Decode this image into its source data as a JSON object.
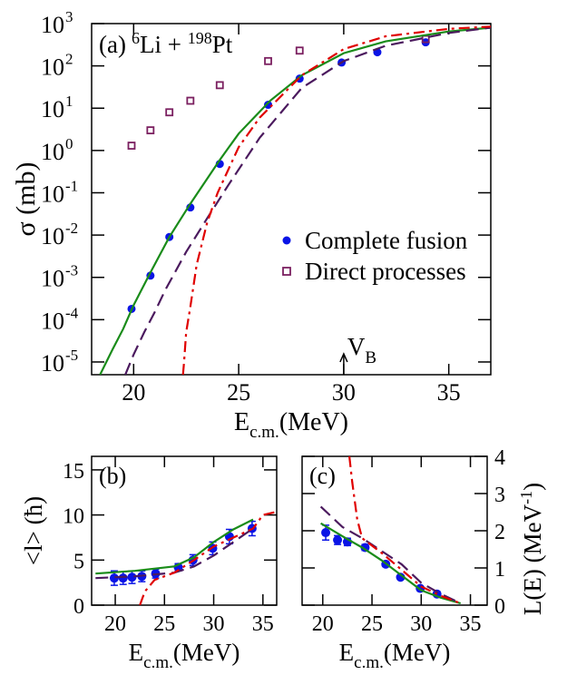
{
  "chart_data": [
    {
      "type": "scatter",
      "panel_label": "(a)",
      "reaction": {
        "pre_sup": "6",
        "a": "Li + ",
        "sup": "198",
        "b": "Pt"
      },
      "ylabel": "σ (mb)",
      "xlabel": {
        "text": "E",
        "sub": "c.m.",
        "unit": "(MeV)"
      },
      "annotation": {
        "text": "V",
        "sub": "B",
        "x": 30
      },
      "xlim": [
        18,
        37
      ],
      "xticks": [
        20,
        25,
        30,
        35
      ],
      "ylog": true,
      "ylim": [
        5e-06,
        1000
      ],
      "yticks": [
        {
          "value": 1e-05,
          "label": "10",
          "exponent": "-5"
        },
        {
          "value": 0.0001,
          "label": "10",
          "exponent": "-4"
        },
        {
          "value": 0.001,
          "label": "10",
          "exponent": "-3"
        },
        {
          "value": 0.01,
          "label": "10",
          "exponent": "-2"
        },
        {
          "value": 0.1,
          "label": "10",
          "exponent": "-1"
        },
        {
          "value": 1,
          "label": "10",
          "exponent": "0"
        },
        {
          "value": 10,
          "label": "10",
          "exponent": "1"
        },
        {
          "value": 100,
          "label": "10",
          "exponent": "2"
        },
        {
          "value": 1000,
          "label": "10",
          "exponent": "3"
        }
      ],
      "legend": "right",
      "series": [
        {
          "type": "scatter",
          "name": "Complete fusion",
          "marker": "circle",
          "color": "#0a14e6",
          "x": [
            19.9,
            20.8,
            21.7,
            22.7,
            24.1,
            26.4,
            27.9,
            29.9,
            31.6,
            33.9
          ],
          "values": [
            0.00018,
            0.0011,
            0.009,
            0.045,
            0.48,
            12,
            50,
            120,
            210,
            360
          ]
        },
        {
          "type": "scatter",
          "name": "Direct processes",
          "marker": "square",
          "color": "#7b2060",
          "x": [
            19.9,
            20.8,
            21.7,
            22.7,
            24.1,
            26.4,
            27.9,
            33.9
          ],
          "values": [
            1.3,
            3,
            8,
            15,
            35,
            130,
            230,
            430
          ]
        },
        {
          "type": "line",
          "line": "solid",
          "color": "#1a8c1a",
          "x": [
            18.4,
            19,
            19.5,
            20,
            20.8,
            21.7,
            22.7,
            24.1,
            25,
            26.5,
            28,
            30,
            32,
            35,
            37
          ],
          "values": [
            5e-06,
            2e-05,
            6e-05,
            0.00022,
            0.0013,
            0.009,
            0.055,
            0.6,
            2.5,
            15,
            60,
            200,
            380,
            650,
            800
          ]
        },
        {
          "type": "line",
          "line": "dashed",
          "color": "#4b1a5e",
          "x": [
            19.6,
            20,
            20.5,
            21,
            21.5,
            22.5,
            23.5,
            24.5,
            26,
            28,
            30,
            32,
            35,
            37
          ],
          "values": [
            5e-06,
            1.5e-05,
            5e-05,
            0.00015,
            0.0005,
            0.004,
            0.025,
            0.15,
            2,
            30,
            130,
            300,
            600,
            800
          ]
        },
        {
          "type": "line",
          "line": "dashdot",
          "color": "#e00000",
          "x": [
            22.35,
            22.4,
            22.5,
            22.7,
            23,
            23.5,
            24,
            25,
            26,
            28,
            30,
            32,
            35,
            37
          ],
          "values": [
            5e-06,
            1e-05,
            5e-05,
            0.0002,
            0.002,
            0.02,
            0.1,
            1.2,
            6,
            60,
            250,
            500,
            750,
            850
          ]
        }
      ]
    },
    {
      "type": "scatter",
      "panel_label": "(b)",
      "ylabel": "<l> (ħ)",
      "xlabel": {
        "text": "E",
        "sub": "c.m.",
        "unit": "(MeV)"
      },
      "xlim": [
        17.6,
        36.4
      ],
      "xticks": [
        20,
        25,
        30,
        35
      ],
      "ylim": [
        0,
        16.5
      ],
      "yticks": [
        0,
        5,
        10,
        15
      ],
      "series": [
        {
          "type": "scatter",
          "marker": "circle",
          "color": "#0a14e6",
          "x": [
            19.9,
            20.8,
            21.7,
            22.7,
            24.1,
            26.4,
            27.9,
            29.9,
            31.6,
            33.9
          ],
          "values": [
            3.0,
            3.0,
            3.1,
            3.2,
            3.5,
            4.2,
            5.0,
            6.3,
            7.6,
            8.5
          ],
          "errors": [
            0.8,
            0.7,
            0.7,
            0.6,
            0.5,
            0.4,
            0.6,
            0.7,
            0.8,
            0.8
          ]
        },
        {
          "type": "line",
          "line": "solid",
          "color": "#1a8c1a",
          "x": [
            18,
            22,
            26,
            28,
            30,
            32,
            34
          ],
          "values": [
            3.5,
            3.8,
            4.3,
            5.3,
            7,
            8.4,
            9.5
          ]
        },
        {
          "type": "line",
          "line": "dashed",
          "color": "#4b1a5e",
          "x": [
            18,
            22,
            26,
            28,
            30,
            32,
            34
          ],
          "values": [
            3.0,
            3.2,
            3.6,
            4.3,
            5.5,
            7,
            8.5
          ]
        },
        {
          "type": "line",
          "line": "dashdot",
          "color": "#e00000",
          "x": [
            22.5,
            23,
            24,
            26,
            28,
            30,
            32,
            34,
            35,
            37
          ],
          "values": [
            0,
            1.5,
            2.8,
            3.6,
            5.0,
            6.5,
            7.5,
            8.5,
            10,
            10.5
          ]
        }
      ]
    },
    {
      "type": "scatter",
      "panel_label": "(c)",
      "ylabel": {
        "text": "L(E) (MeV",
        "sup": "-1",
        "close": ")"
      },
      "xlabel": {
        "text": "E",
        "sub": "c.m.",
        "unit": "(MeV)"
      },
      "xlim": [
        17.9,
        36.7
      ],
      "xticks": [
        20,
        25,
        30,
        35
      ],
      "ylim": [
        0,
        4
      ],
      "yticks": [
        0,
        1,
        2,
        3,
        4
      ],
      "yaxis": "right",
      "series": [
        {
          "type": "scatter",
          "marker": "circle",
          "color": "#0a14e6",
          "x": [
            20.3,
            21.5,
            22.5,
            24.3,
            26.4,
            27.9,
            29.9,
            31.6
          ],
          "values": [
            1.95,
            1.75,
            1.7,
            1.55,
            1.1,
            0.75,
            0.45,
            0.3
          ],
          "errors": [
            0.2,
            0.12,
            0.1,
            0.08,
            0.06,
            0.05,
            0.04,
            0.04
          ]
        },
        {
          "type": "line",
          "line": "solid",
          "color": "#1a8c1a",
          "x": [
            19.8,
            22,
            24,
            26,
            28,
            30,
            32,
            34
          ],
          "values": [
            2.2,
            1.85,
            1.55,
            1.2,
            0.8,
            0.4,
            0.2,
            0.05
          ]
        },
        {
          "type": "line",
          "line": "dashed",
          "color": "#4b1a5e",
          "x": [
            19.8,
            22,
            24,
            26,
            28,
            30,
            32,
            34
          ],
          "values": [
            2.65,
            2.1,
            1.8,
            1.45,
            1.1,
            0.6,
            0.3,
            0.05
          ]
        },
        {
          "type": "line",
          "line": "dashdot",
          "color": "#e00000",
          "x": [
            22.7,
            23,
            23.5,
            24,
            25,
            26,
            28,
            30,
            32,
            34
          ],
          "values": [
            4,
            3.3,
            2.3,
            1.8,
            1.6,
            1.4,
            0.95,
            0.5,
            0.25,
            0.05
          ]
        }
      ]
    }
  ]
}
